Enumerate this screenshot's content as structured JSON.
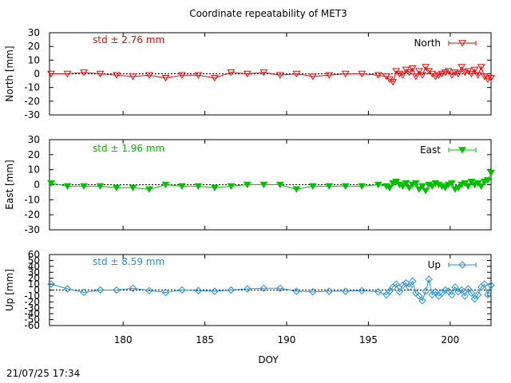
{
  "title": "Coordinate repeatability of MET3",
  "timestamp": "21/07/25 17:34",
  "xlabel": "DOY",
  "colors": {
    "North": "#ff0000",
    "East": "#00c000",
    "Up": "#1f8fe6",
    "frame": "#000000",
    "zero": "#000000"
  },
  "chart_data": [
    {
      "type": "line",
      "ylabel": "North [mm]",
      "xlim": [
        175.5,
        202.5
      ],
      "ylim": [
        -30,
        30
      ],
      "yticks": [
        -30,
        -20,
        -10,
        0,
        10,
        20,
        30
      ],
      "xticks": [
        180,
        185,
        190,
        195,
        200
      ],
      "std_label": "std ± 2.76 mm",
      "legend": "top-right",
      "series": [
        {
          "name": "North",
          "marker": "open-triangle-down",
          "x": [
            175.6,
            176.6,
            177.6,
            178.6,
            179.6,
            180.6,
            181.6,
            182.6,
            183.6,
            184.6,
            185.6,
            186.6,
            187.6,
            188.6,
            189.6,
            190.6,
            191.6,
            192.6,
            193.6,
            194.6,
            195.6,
            196.1,
            196.3,
            196.5,
            196.7,
            196.9,
            197.1,
            197.3,
            197.5,
            197.7,
            197.9,
            198.1,
            198.3,
            198.5,
            198.7,
            198.9,
            199.1,
            199.3,
            199.5,
            199.7,
            199.9,
            200.1,
            200.3,
            200.5,
            200.7,
            200.9,
            201.1,
            201.3,
            201.5,
            201.7,
            201.9,
            202.1,
            202.3,
            202.5
          ],
          "y": [
            0,
            0,
            1,
            0,
            -1,
            -2,
            -1,
            -3,
            -1,
            -1,
            -3,
            1,
            0,
            1,
            -1,
            0,
            -2,
            -1,
            0,
            0,
            -1,
            -2,
            -4,
            -6,
            2,
            0,
            -1,
            3,
            1,
            4,
            -2,
            2,
            -1,
            5,
            2,
            0,
            -2,
            -1,
            0,
            1,
            2,
            -1,
            1,
            0,
            5,
            1,
            2,
            0,
            3,
            -1,
            5,
            -2,
            -4,
            -3
          ]
        }
      ]
    },
    {
      "type": "line",
      "ylabel": "East [mm]",
      "xlim": [
        175.5,
        202.5
      ],
      "ylim": [
        -30,
        30
      ],
      "yticks": [
        -30,
        -20,
        -10,
        0,
        10,
        20,
        30
      ],
      "xticks": [
        180,
        185,
        190,
        195,
        200
      ],
      "std_label": "std ± 1.96 mm",
      "legend": "top-right",
      "series": [
        {
          "name": "East",
          "marker": "filled-triangle-down",
          "x": [
            175.6,
            176.6,
            177.6,
            178.6,
            179.6,
            180.6,
            181.6,
            182.6,
            183.6,
            184.6,
            185.6,
            186.6,
            187.6,
            188.6,
            189.6,
            190.6,
            191.6,
            192.6,
            193.6,
            194.6,
            195.6,
            196.1,
            196.3,
            196.5,
            196.7,
            196.9,
            197.1,
            197.3,
            197.5,
            197.7,
            197.9,
            198.1,
            198.3,
            198.5,
            198.7,
            198.9,
            199.1,
            199.3,
            199.5,
            199.7,
            199.9,
            200.1,
            200.3,
            200.5,
            200.7,
            200.9,
            201.1,
            201.3,
            201.5,
            201.7,
            201.9,
            202.1,
            202.3,
            202.5
          ],
          "y": [
            1,
            -1,
            -1,
            -1,
            -2,
            -2,
            -3,
            0,
            -1,
            -1,
            -2,
            -1,
            0,
            0,
            0,
            -3,
            -1,
            -1,
            -1,
            -1,
            0,
            -1,
            -2,
            1,
            2,
            0,
            -1,
            1,
            -2,
            0,
            1,
            -3,
            -1,
            -4,
            0,
            -1,
            1,
            0,
            -1,
            -2,
            0,
            1,
            -3,
            -2,
            0,
            1,
            -1,
            2,
            0,
            1,
            -1,
            2,
            3,
            8
          ]
        }
      ]
    },
    {
      "type": "line",
      "ylabel": "Up [mm]",
      "xlim": [
        175.5,
        202.5
      ],
      "ylim": [
        -60,
        60
      ],
      "yticks": [
        -60,
        -50,
        -40,
        -30,
        -20,
        -10,
        0,
        10,
        20,
        30,
        40,
        50,
        60
      ],
      "xticks": [
        180,
        185,
        190,
        195,
        200
      ],
      "std_label": "std ± 8.59 mm",
      "legend": "top-right",
      "series": [
        {
          "name": "Up",
          "marker": "open-diamond",
          "x": [
            175.6,
            176.6,
            177.6,
            178.6,
            179.6,
            180.6,
            181.6,
            182.6,
            183.6,
            184.6,
            185.6,
            186.6,
            187.6,
            188.6,
            189.6,
            190.6,
            191.6,
            192.6,
            193.6,
            194.6,
            195.6,
            196.1,
            196.3,
            196.5,
            196.7,
            196.9,
            197.1,
            197.3,
            197.5,
            197.7,
            197.9,
            198.1,
            198.3,
            198.5,
            198.7,
            198.9,
            199.1,
            199.3,
            199.5,
            199.7,
            199.9,
            200.1,
            200.3,
            200.5,
            200.7,
            200.9,
            201.1,
            201.3,
            201.5,
            201.7,
            201.9,
            202.1,
            202.3,
            202.5
          ],
          "y": [
            10,
            2,
            -4,
            0,
            0,
            3,
            -1,
            -4,
            0,
            -1,
            -2,
            0,
            2,
            3,
            3,
            -2,
            -3,
            -2,
            -2,
            -1,
            -3,
            -8,
            -2,
            5,
            10,
            -3,
            8,
            12,
            5,
            15,
            -5,
            -10,
            -18,
            -2,
            18,
            -8,
            -3,
            -10,
            -5,
            0,
            -2,
            -8,
            5,
            -3,
            0,
            -10,
            2,
            -5,
            -15,
            -8,
            5,
            10,
            -8,
            8
          ]
        }
      ]
    }
  ]
}
